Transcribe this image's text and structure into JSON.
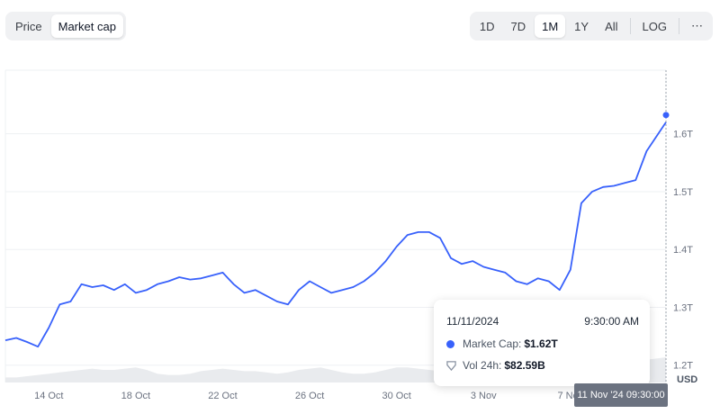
{
  "metric_toggle": {
    "items": [
      "Price",
      "Market cap"
    ],
    "active": "Market cap"
  },
  "range_toggle": {
    "items": [
      "1D",
      "7D",
      "1M",
      "1Y",
      "All"
    ],
    "active": "1M",
    "log_label": "LOG",
    "more_label": "⋯"
  },
  "tooltip": {
    "date": "11/11/2024",
    "time": "9:30:00 AM",
    "market_cap_label": "Market Cap:",
    "market_cap_value": "$1.62T",
    "vol_label": "Vol 24h:",
    "vol_value": "$82.59B"
  },
  "hover_label": "11 Nov '24 09:30:00",
  "colors": {
    "line": "#3861fb",
    "volume": "#e9ebee",
    "grid": "#eef0f3"
  },
  "chart_data": {
    "type": "line",
    "title": "",
    "xlabel": "",
    "ylabel": "USD",
    "x_ticks": [
      "14 Oct",
      "18 Oct",
      "22 Oct",
      "26 Oct",
      "30 Oct",
      "3 Nov",
      "7 Nov"
    ],
    "y_ticks": [
      "1.2T",
      "1.3T",
      "1.4T",
      "1.5T",
      "1.6T"
    ],
    "y_tick_values": [
      1.2,
      1.3,
      1.4,
      1.5,
      1.6
    ],
    "ylim": [
      1.17,
      1.71
    ],
    "xlim": [
      "2024-10-12",
      "2024-11-11T09:30"
    ],
    "grid": true,
    "series": [
      {
        "x": [
          "10-12",
          "10-12.5",
          "10-13",
          "10-13.5",
          "10-14",
          "10-14.5",
          "10-15",
          "10-15.5",
          "10-16",
          "10-16.5",
          "10-17",
          "10-17.5",
          "10-18",
          "10-18.5",
          "10-19",
          "10-19.5",
          "10-20",
          "10-20.5",
          "10-21",
          "10-21.5",
          "10-22",
          "10-22.5",
          "10-23",
          "10-23.5",
          "10-24",
          "10-24.5",
          "10-25",
          "10-25.5",
          "10-26",
          "10-26.5",
          "10-27",
          "10-27.5",
          "10-28",
          "10-28.5",
          "10-29",
          "10-29.5",
          "10-30",
          "10-30.5",
          "10-31",
          "10-31.5",
          "11-01",
          "11-01.5",
          "11-02",
          "11-02.5",
          "11-03",
          "11-03.5",
          "11-04",
          "11-04.5",
          "11-05",
          "11-05.5",
          "11-06",
          "11-06.5",
          "11-07",
          "11-07.5",
          "11-08",
          "11-08.5",
          "11-09",
          "11-09.5",
          "11-10",
          "11-10.5",
          "11-11"
        ],
        "values": [
          1.243,
          1.247,
          1.24,
          1.232,
          1.265,
          1.305,
          1.31,
          1.34,
          1.335,
          1.338,
          1.33,
          1.34,
          1.325,
          1.33,
          1.34,
          1.345,
          1.352,
          1.348,
          1.35,
          1.355,
          1.36,
          1.34,
          1.325,
          1.33,
          1.32,
          1.31,
          1.305,
          1.33,
          1.345,
          1.335,
          1.325,
          1.33,
          1.335,
          1.345,
          1.36,
          1.38,
          1.405,
          1.425,
          1.43,
          1.43,
          1.42,
          1.385,
          1.375,
          1.38,
          1.37,
          1.365,
          1.36,
          1.345,
          1.34,
          1.35,
          1.345,
          1.33,
          1.365,
          1.48,
          1.5,
          1.508,
          1.51,
          1.515,
          1.52,
          1.57,
          1.62
        ]
      }
    ],
    "volume": [
      0.2,
      0.2,
      0.25,
      0.3,
      0.35,
      0.4,
      0.45,
      0.5,
      0.55,
      0.5,
      0.5,
      0.55,
      0.6,
      0.5,
      0.35,
      0.3,
      0.3,
      0.35,
      0.45,
      0.5,
      0.55,
      0.5,
      0.45,
      0.45,
      0.4,
      0.35,
      0.4,
      0.5,
      0.55,
      0.6,
      0.5,
      0.4,
      0.35,
      0.35,
      0.4,
      0.5,
      0.6,
      0.6,
      0.55,
      0.5,
      0.45,
      0.4,
      0.35,
      0.3,
      0.3,
      0.3,
      0.35,
      0.4,
      0.45,
      0.5,
      0.55,
      0.6,
      0.65,
      0.7,
      0.75,
      0.7,
      0.7,
      0.8,
      0.85,
      0.9,
      1.0
    ]
  }
}
